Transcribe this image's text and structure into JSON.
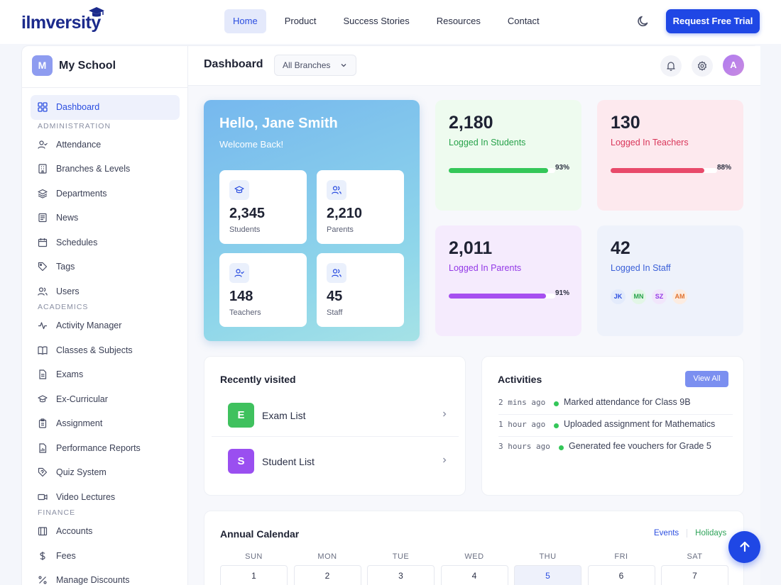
{
  "brand": {
    "logo_text": "ilmversity"
  },
  "nav": {
    "links": [
      "Home",
      "Product",
      "Success Stories",
      "Resources",
      "Contact"
    ],
    "active": "Home",
    "cta": "Request Free Trial"
  },
  "sidebar": {
    "school_initial": "M",
    "school_name": "My School",
    "dashboard": "Dashboard",
    "sections": {
      "administration": "ADMINISTRATION",
      "academics": "ACADEMICS",
      "finance": "FINANCE"
    },
    "admin_items": [
      "Attendance",
      "Branches & Levels",
      "Departments",
      "News",
      "Schedules",
      "Tags",
      "Users"
    ],
    "academic_items": [
      "Activity Manager",
      "Classes & Subjects",
      "Exams",
      "Ex-Curricular",
      "Assignment",
      "Performance Reports",
      "Quiz System",
      "Video Lectures"
    ],
    "finance_items": [
      "Accounts",
      "Fees",
      "Manage Discounts"
    ]
  },
  "header": {
    "title": "Dashboard",
    "branch_select": "All Branches",
    "avatar_initial": "A"
  },
  "hello": {
    "title": "Hello, Jane Smith",
    "subtitle": "Welcome Back!",
    "tiles": [
      {
        "value": "2,345",
        "label": "Students",
        "icon": "graduation-cap-icon"
      },
      {
        "value": "2,210",
        "label": "Parents",
        "icon": "users-icon"
      },
      {
        "value": "148",
        "label": "Teachers",
        "icon": "user-check-icon"
      },
      {
        "value": "45",
        "label": "Staff",
        "icon": "users-icon"
      }
    ]
  },
  "stats": {
    "students": {
      "value": "2,180",
      "label": "Logged In Students",
      "percent": 93,
      "percent_label": "93%",
      "color": "#34c759"
    },
    "teachers": {
      "value": "130",
      "label": "Logged In Teachers",
      "percent": 88,
      "percent_label": "88%",
      "color": "#e84a6a"
    },
    "parents": {
      "value": "2,011",
      "label": "Logged In Parents",
      "percent": 91,
      "percent_label": "91%",
      "color": "#a64ff0"
    },
    "staff": {
      "value": "42",
      "label": "Logged In Staff",
      "chips": [
        "JK",
        "MN",
        "SZ",
        "AM"
      ]
    }
  },
  "recent": {
    "title": "Recently visited",
    "items": [
      {
        "letter": "E",
        "name": "Exam List",
        "color": "#3fc15e"
      },
      {
        "letter": "S",
        "name": "Student List",
        "color": "#9a4ff0"
      }
    ]
  },
  "activities": {
    "title": "Activities",
    "view_all": "View All",
    "items": [
      {
        "time": "2 mins ago",
        "text": "Marked attendance for Class 9B"
      },
      {
        "time": "1 hour ago",
        "text": "Uploaded assignment for Mathematics"
      },
      {
        "time": "3 hours ago",
        "text": "Generated fee vouchers for Grade 5"
      }
    ]
  },
  "calendar": {
    "title": "Annual Calendar",
    "tab_events": "Events",
    "tab_holidays": "Holidays",
    "weekdays": [
      "SUN",
      "MON",
      "TUE",
      "WED",
      "THU",
      "FRI",
      "SAT"
    ],
    "days": [
      "1",
      "2",
      "3",
      "4",
      "5",
      "6",
      "7"
    ],
    "today": "5"
  }
}
